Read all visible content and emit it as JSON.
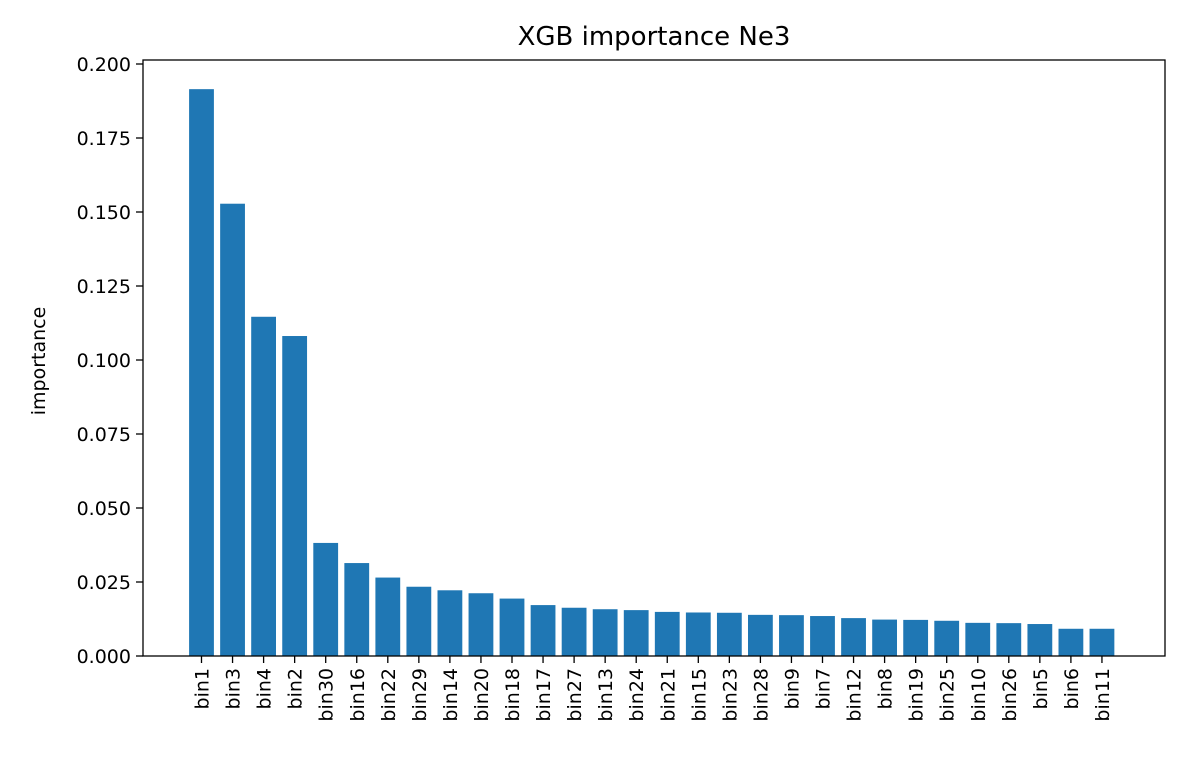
{
  "chart_data": {
    "type": "bar",
    "title": "XGB importance Ne3",
    "xlabel": "",
    "ylabel": "importance",
    "ylim": [
      0,
      0.2
    ],
    "yticks": [
      "0.000",
      "0.025",
      "0.050",
      "0.075",
      "0.100",
      "0.125",
      "0.150",
      "0.175",
      "0.200"
    ],
    "categories": [
      "bin1",
      "bin3",
      "bin4",
      "bin2",
      "bin30",
      "bin16",
      "bin22",
      "bin29",
      "bin14",
      "bin20",
      "bin18",
      "bin17",
      "bin27",
      "bin13",
      "bin24",
      "bin21",
      "bin15",
      "bin23",
      "bin28",
      "bin9",
      "bin7",
      "bin12",
      "bin8",
      "bin19",
      "bin25",
      "bin10",
      "bin26",
      "bin5",
      "bin6",
      "bin11"
    ],
    "values": [
      0.1915,
      0.1528,
      0.1146,
      0.1081,
      0.0382,
      0.0314,
      0.0265,
      0.0234,
      0.0222,
      0.0212,
      0.0194,
      0.0172,
      0.0163,
      0.0158,
      0.0155,
      0.0149,
      0.0147,
      0.0146,
      0.0139,
      0.0138,
      0.0135,
      0.0128,
      0.0123,
      0.0122,
      0.0119,
      0.0112,
      0.0111,
      0.0108,
      0.0092,
      0.0092
    ],
    "bar_color": "#1f77b4",
    "grid": false,
    "legend": "none"
  }
}
